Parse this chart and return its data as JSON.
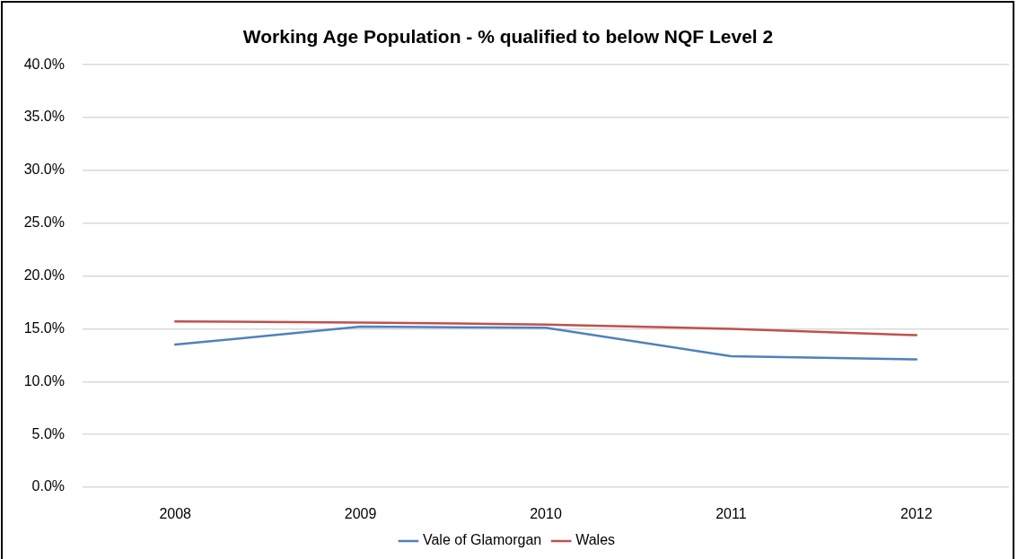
{
  "chart_data": {
    "type": "line",
    "title": "Working Age Population - % qualified to below NQF Level 2",
    "categories": [
      "2008",
      "2009",
      "2010",
      "2011",
      "2012"
    ],
    "series": [
      {
        "name": "Vale of Glamorgan",
        "color": "#4f81bd",
        "values": [
          13.5,
          15.2,
          15.1,
          12.4,
          12.1
        ]
      },
      {
        "name": "Wales",
        "color": "#c0504d",
        "values": [
          15.7,
          15.6,
          15.4,
          15.0,
          14.4
        ]
      }
    ],
    "ylim": [
      0,
      40
    ],
    "yticks": [
      {
        "value": 0,
        "label": "0.0%"
      },
      {
        "value": 5,
        "label": "5.0%"
      },
      {
        "value": 10,
        "label": "10.0%"
      },
      {
        "value": 15,
        "label": "15.0%"
      },
      {
        "value": 20,
        "label": "20.0%"
      },
      {
        "value": 25,
        "label": "25.0%"
      },
      {
        "value": 30,
        "label": "30.0%"
      },
      {
        "value": 35,
        "label": "35.0%"
      },
      {
        "value": 40,
        "label": "40.0%"
      }
    ],
    "grid": "y",
    "legend": "bottom",
    "marker": "none",
    "line_style": "solid"
  }
}
